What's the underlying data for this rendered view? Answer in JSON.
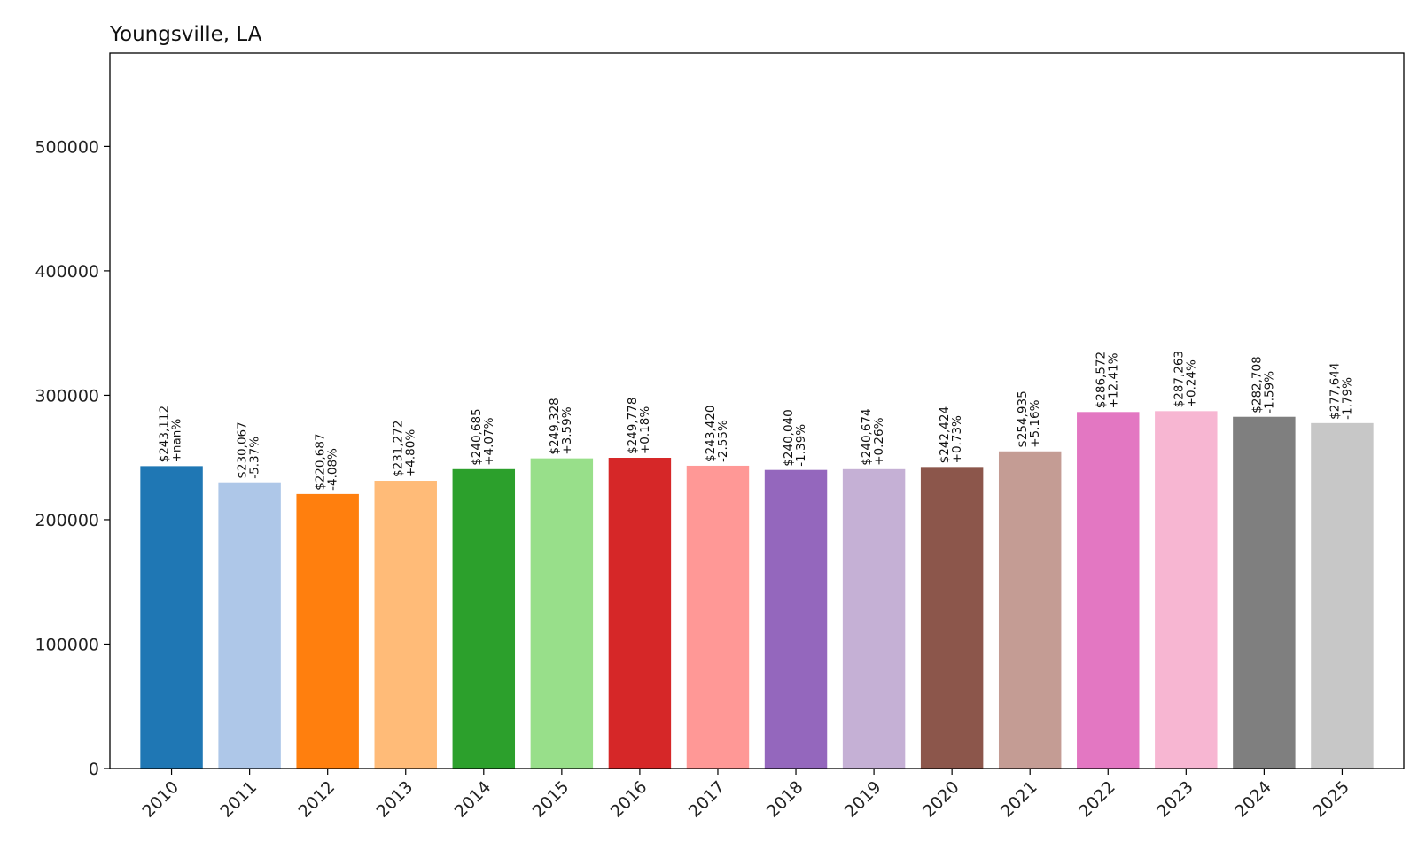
{
  "chart_data": {
    "type": "bar",
    "title": "Youngsville, LA",
    "xlabel": "",
    "ylabel": "",
    "ylim": [
      0,
      575000
    ],
    "yticks": [
      0,
      100000,
      200000,
      300000,
      400000,
      500000
    ],
    "ytick_labels": [
      "0",
      "100000",
      "200000",
      "300000",
      "400000",
      "500000"
    ],
    "grid": false,
    "legend": "none",
    "categories": [
      "2010",
      "2011",
      "2012",
      "2013",
      "2014",
      "2015",
      "2016",
      "2017",
      "2018",
      "2019",
      "2020",
      "2021",
      "2022",
      "2023",
      "2024",
      "2025"
    ],
    "values": [
      243112,
      230067,
      220687,
      231272,
      240685,
      249328,
      249778,
      243420,
      240040,
      240674,
      242424,
      254935,
      286572,
      287263,
      282708,
      277644
    ],
    "value_labels": [
      "$243,112",
      "$230,067",
      "$220,687",
      "$231,272",
      "$240,685",
      "$249,328",
      "$249,778",
      "$243,420",
      "$240,040",
      "$240,674",
      "$242,424",
      "$254,935",
      "$286,572",
      "$287,263",
      "$282,708",
      "$277,644"
    ],
    "change_labels": [
      "+nan%",
      "-5.37%",
      "-4.08%",
      "+4.80%",
      "+4.07%",
      "+3.59%",
      "+0.18%",
      "-2.55%",
      "-1.39%",
      "+0.26%",
      "+0.73%",
      "+5.16%",
      "+12.41%",
      "+0.24%",
      "-1.59%",
      "-1.79%"
    ],
    "colors": [
      "#1f77b4",
      "#aec7e8",
      "#ff7f0e",
      "#ffbb78",
      "#2ca02c",
      "#98df8a",
      "#d62728",
      "#ff9896",
      "#9467bd",
      "#c5b0d5",
      "#8c564b",
      "#c49c94",
      "#e377c2",
      "#f7b6d2",
      "#7f7f7f",
      "#c7c7c7"
    ]
  }
}
